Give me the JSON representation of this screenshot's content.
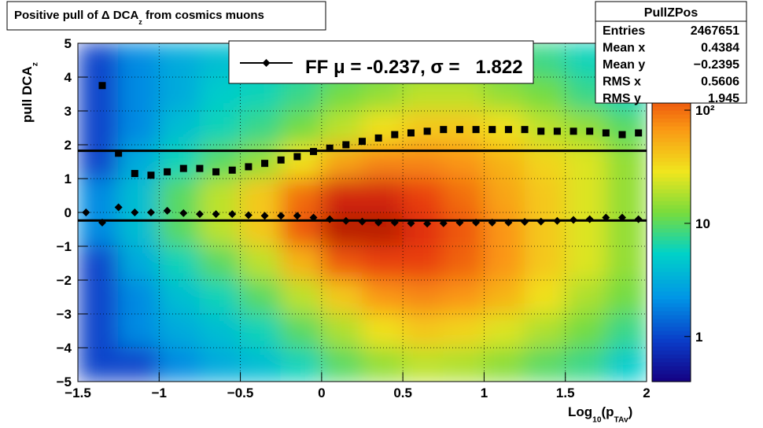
{
  "chart_data": {
    "type": "heatmap-profile",
    "title": [
      "Positive pull of Δ DCA",
      "z",
      " from cosmics muons"
    ],
    "xlabel": [
      "Log",
      "10",
      "(p",
      "TAv",
      ")"
    ],
    "ylabel": [
      "pull DCA",
      "z"
    ],
    "xlim": [
      -1.5,
      2
    ],
    "ylim": [
      -5,
      5
    ],
    "xticks": [
      {
        "value": -1.5,
        "label": "−1.5"
      },
      {
        "value": -1,
        "label": "−1"
      },
      {
        "value": -0.5,
        "label": "−0.5"
      },
      0,
      0.5,
      1,
      1.5,
      2
    ],
    "yticks": [
      {
        "value": -5,
        "label": "−5"
      },
      {
        "value": -4,
        "label": "−4"
      },
      {
        "value": -3,
        "label": "−3"
      },
      {
        "value": -2,
        "label": "−2"
      },
      {
        "value": -1,
        "label": "−1"
      },
      0,
      1,
      2,
      3,
      4,
      5
    ],
    "grid": true,
    "zlog": true,
    "zlim": [
      0.4,
      390
    ],
    "zticks": [
      1,
      10,
      {
        "value": 100,
        "label": "10²"
      }
    ],
    "heatmap": {
      "xedges": [
        -1.5,
        -1.25,
        -1,
        -0.75,
        -0.5,
        -0.25,
        0,
        0.25,
        0.5,
        0.75,
        1,
        1.25,
        1.5,
        1.75,
        2
      ],
      "yedges": [
        5,
        4,
        3,
        2,
        1,
        0,
        -1,
        -2,
        -3,
        -4,
        -5
      ],
      "counts": [
        [
          1,
          2,
          3,
          4,
          5,
          6,
          8,
          10,
          12,
          12,
          10,
          8,
          6,
          5
        ],
        [
          1,
          2,
          3,
          5,
          6,
          8,
          12,
          15,
          20,
          20,
          15,
          12,
          8,
          6
        ],
        [
          1,
          2,
          4,
          6,
          8,
          12,
          20,
          30,
          40,
          40,
          30,
          20,
          15,
          10
        ],
        [
          1,
          3,
          6,
          10,
          15,
          30,
          60,
          80,
          80,
          70,
          50,
          35,
          25,
          15
        ],
        [
          2,
          4,
          10,
          20,
          40,
          100,
          200,
          200,
          150,
          100,
          60,
          40,
          25,
          15
        ],
        [
          2,
          4,
          10,
          20,
          40,
          120,
          250,
          250,
          180,
          120,
          70,
          40,
          25,
          15
        ],
        [
          1,
          3,
          6,
          10,
          20,
          50,
          120,
          150,
          150,
          110,
          70,
          40,
          25,
          15
        ],
        [
          1,
          2,
          4,
          6,
          10,
          20,
          40,
          70,
          80,
          70,
          50,
          30,
          18,
          12
        ],
        [
          1,
          2,
          3,
          4,
          6,
          10,
          18,
          30,
          40,
          35,
          25,
          18,
          12,
          8
        ],
        [
          1,
          1,
          2,
          3,
          4,
          6,
          10,
          15,
          20,
          18,
          14,
          10,
          8,
          5
        ]
      ]
    },
    "x": [
      -1.45,
      -1.35,
      -1.25,
      -1.15,
      -1.05,
      -0.95,
      -0.85,
      -0.75,
      -0.65,
      -0.55,
      -0.45,
      -0.35,
      -0.25,
      -0.15,
      -0.05,
      0.05,
      0.15,
      0.25,
      0.35,
      0.45,
      0.55,
      0.65,
      0.75,
      0.85,
      0.95,
      1.05,
      1.15,
      1.25,
      1.35,
      1.45,
      1.55,
      1.65,
      1.75,
      1.85,
      1.95
    ],
    "series": [
      {
        "marker": "diamond",
        "color": "#000000",
        "values": [
          0.0,
          -0.3,
          0.15,
          0.0,
          0.0,
          0.05,
          -0.02,
          -0.05,
          -0.05,
          -0.05,
          -0.08,
          -0.1,
          -0.1,
          -0.1,
          -0.15,
          -0.2,
          -0.25,
          -0.27,
          -0.3,
          -0.3,
          -0.32,
          -0.33,
          -0.32,
          -0.3,
          -0.3,
          -0.3,
          -0.3,
          -0.28,
          -0.27,
          -0.25,
          -0.22,
          -0.2,
          -0.15,
          -0.15,
          -0.2
        ]
      },
      {
        "marker": "square",
        "color": "#000000",
        "values": [
          null,
          3.75,
          1.75,
          1.15,
          1.1,
          1.2,
          1.3,
          1.3,
          1.2,
          1.25,
          1.35,
          1.45,
          1.55,
          1.65,
          1.8,
          1.9,
          2.0,
          2.1,
          2.2,
          2.3,
          2.35,
          2.4,
          2.45,
          2.45,
          2.45,
          2.45,
          2.45,
          2.45,
          2.4,
          2.4,
          2.4,
          2.4,
          2.35,
          2.3,
          2.35
        ]
      }
    ],
    "fit_lines": [
      -0.237,
      1.822
    ],
    "legend": "FF μ = -0.237, σ =   1.822",
    "stats": {
      "title": "PullZPos",
      "rows": [
        [
          "Entries",
          "2467651"
        ],
        [
          "Mean x",
          "0.4384"
        ],
        [
          "Mean y",
          "−0.2395"
        ],
        [
          "RMS x",
          "0.5606"
        ],
        [
          "RMS y",
          "1.945"
        ]
      ]
    }
  }
}
